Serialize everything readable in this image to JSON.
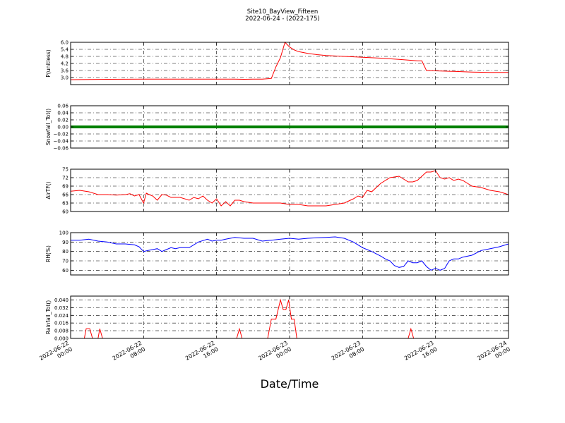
{
  "title": "Site10_BayView_Fifteen",
  "subtitle": "2022-06-24 - (2022-175)",
  "xlabel": "Date/Time",
  "x_ticks": [
    {
      "line1": "2022-06-22",
      "line2": "00:00",
      "hours": 0
    },
    {
      "line1": "2022-06-22",
      "line2": "08:00",
      "hours": 8
    },
    {
      "line1": "2022-06-22",
      "line2": "16:00",
      "hours": 16
    },
    {
      "line1": "2022-06-23",
      "line2": "00:00",
      "hours": 24
    },
    {
      "line1": "2022-06-23",
      "line2": "08:00",
      "hours": 32
    },
    {
      "line1": "2022-06-23",
      "line2": "16:00",
      "hours": 40
    },
    {
      "line1": "2022-06-24",
      "line2": "00:00",
      "hours": 48
    }
  ],
  "chart_data": [
    {
      "type": "line",
      "ylabel": "P(unitless)",
      "color": "#ff0000",
      "ylim": [
        2.4,
        6.0
      ],
      "yticks": [
        3.0,
        3.6,
        4.2,
        4.8,
        5.4,
        6.0
      ],
      "tick_labels": [
        "3.0",
        "3.6",
        "4.2",
        "4.8",
        "5.4",
        "6.0"
      ],
      "x": [
        0,
        2,
        4,
        8,
        12,
        16,
        18,
        19,
        20,
        21,
        22,
        22.5,
        23,
        23.5,
        24,
        24.5,
        25,
        26,
        27,
        28,
        30,
        32,
        34,
        36,
        38,
        38.5,
        39,
        40,
        42,
        44,
        46,
        48
      ],
      "y": [
        2.82,
        2.84,
        2.85,
        2.86,
        2.86,
        2.86,
        2.87,
        2.85,
        2.86,
        2.86,
        2.92,
        3.9,
        4.7,
        6.0,
        5.6,
        5.35,
        5.2,
        5.05,
        4.95,
        4.88,
        4.8,
        4.73,
        4.65,
        4.55,
        4.43,
        4.42,
        3.6,
        3.57,
        3.52,
        3.47,
        3.44,
        3.43
      ]
    },
    {
      "type": "scatter",
      "ylabel": "Snowfall_Tot()",
      "color": "#008000",
      "ylim": [
        -0.06,
        0.06
      ],
      "yticks": [
        -0.06,
        -0.04,
        -0.02,
        0.0,
        0.02,
        0.04,
        0.06
      ],
      "tick_labels": [
        "−0.06",
        "−0.04",
        "−0.02",
        "0.00",
        "0.02",
        "0.04",
        "0.06"
      ],
      "x": [
        0,
        48
      ],
      "y": [
        0.0,
        0.0
      ]
    },
    {
      "type": "line",
      "ylabel": "AirTF()",
      "color": "#ff0000",
      "ylim": [
        60,
        75
      ],
      "yticks": [
        60,
        63,
        66,
        69,
        72,
        75
      ],
      "tick_labels": [
        "60",
        "63",
        "66",
        "69",
        "72",
        "75"
      ],
      "x": [
        0,
        1,
        2,
        3,
        4,
        5,
        6,
        6.5,
        7,
        7.5,
        8,
        8.3,
        8.6,
        9,
        9.5,
        10,
        10.5,
        11,
        12,
        13,
        13.5,
        14,
        14.5,
        15,
        15.5,
        16,
        16.5,
        17,
        17.5,
        18,
        18.5,
        19,
        20,
        21,
        22,
        23,
        24,
        25,
        26,
        27,
        28,
        29,
        30,
        31,
        31.5,
        32,
        32.5,
        33,
        34,
        35,
        36,
        36.5,
        37,
        37.5,
        38,
        39,
        39.5,
        40,
        40.5,
        41,
        41.5,
        42,
        42.5,
        43,
        43.5,
        44,
        45,
        46,
        47,
        48
      ],
      "y": [
        67.2,
        67.5,
        67.0,
        66.0,
        66.0,
        65.8,
        66.0,
        66.3,
        65.5,
        66.0,
        63.0,
        66.5,
        66.0,
        65.5,
        64.0,
        66.0,
        65.8,
        65.0,
        65.0,
        64.0,
        65.0,
        64.5,
        65.5,
        64.0,
        63.0,
        64.5,
        62.0,
        63.5,
        62.0,
        64.0,
        64.0,
        63.5,
        63.0,
        63.0,
        63.0,
        63.0,
        62.5,
        62.5,
        62.0,
        62.0,
        62.0,
        62.5,
        63.0,
        64.5,
        65.5,
        65.0,
        67.5,
        67.0,
        70.0,
        72.0,
        72.5,
        71.5,
        70.5,
        70.5,
        71.0,
        74.0,
        74.0,
        74.5,
        72.0,
        71.5,
        72.0,
        71.0,
        71.5,
        71.0,
        70.0,
        69.0,
        68.5,
        67.5,
        67.0,
        66.0
      ]
    },
    {
      "type": "line",
      "ylabel": "RH(%)",
      "color": "#0000ff",
      "ylim": [
        55,
        100
      ],
      "yticks": [
        60,
        70,
        80,
        90,
        100
      ],
      "tick_labels": [
        "60",
        "70",
        "80",
        "90",
        "100"
      ],
      "x": [
        0,
        1,
        2,
        3,
        4,
        5,
        6,
        7,
        7.5,
        8,
        8.5,
        9,
        9.5,
        10,
        10.5,
        11,
        11.5,
        12,
        13,
        14,
        15,
        15.5,
        16,
        16.5,
        17,
        18,
        19,
        20,
        21,
        22,
        23,
        24,
        25,
        26,
        27,
        28,
        29,
        30,
        31,
        32,
        32.5,
        33,
        34,
        34.5,
        35,
        35.5,
        36,
        36.5,
        37,
        37.5,
        38,
        38.5,
        39,
        39.5,
        40,
        40.5,
        41,
        41.5,
        42,
        42.5,
        43,
        44,
        45,
        46,
        47,
        48
      ],
      "y": [
        92,
        92,
        93,
        91,
        90,
        88,
        88,
        87,
        85,
        80,
        81,
        82,
        83,
        80,
        82,
        84,
        83,
        84,
        84,
        90,
        93,
        91,
        92,
        92,
        93,
        95,
        94,
        94,
        91,
        92,
        93,
        94,
        93,
        94,
        94.5,
        95,
        95.5,
        94,
        90,
        84,
        82,
        80,
        75,
        72,
        70,
        65,
        63,
        64,
        70,
        68,
        68,
        70,
        64,
        60,
        62,
        60,
        62,
        70,
        72,
        72,
        74,
        76,
        81,
        83,
        85,
        88
      ]
    },
    {
      "type": "line",
      "ylabel": "Rainfall_Tot()",
      "color": "#ff0000",
      "ylim": [
        0,
        0.044
      ],
      "yticks": [
        0.0,
        0.008,
        0.016,
        0.024,
        0.032,
        0.04
      ],
      "tick_labels": [
        "0.000",
        "0.008",
        "0.016",
        "0.024",
        "0.032",
        "0.040"
      ],
      "x": [
        0,
        1.5,
        1.7,
        2.1,
        2.4,
        3.0,
        3.2,
        3.5,
        18.2,
        18.5,
        18.8,
        21.6,
        22,
        22.5,
        23,
        23.3,
        23.6,
        23.9,
        24.2,
        24.5,
        24.8,
        25.1,
        37.0,
        37.3,
        37.6,
        48
      ],
      "y": [
        0,
        0,
        0.01,
        0.01,
        0,
        0,
        0.01,
        0,
        0,
        0.01,
        0,
        0,
        0.02,
        0.02,
        0.04,
        0.03,
        0.03,
        0.04,
        0.02,
        0.02,
        0,
        0,
        0,
        0.01,
        0,
        0
      ]
    }
  ]
}
